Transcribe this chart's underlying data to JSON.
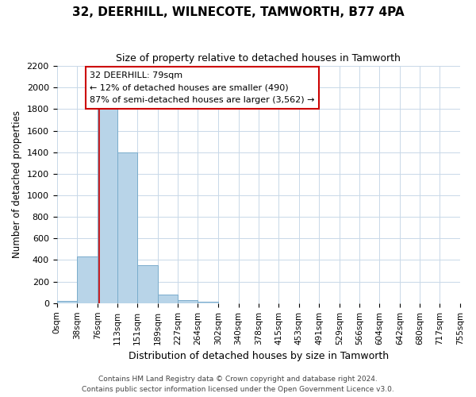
{
  "title": "32, DEERHILL, WILNECOTE, TAMWORTH, B77 4PA",
  "subtitle": "Size of property relative to detached houses in Tamworth",
  "xlabel": "Distribution of detached houses by size in Tamworth",
  "ylabel": "Number of detached properties",
  "bin_edges": [
    0,
    38,
    76,
    113,
    151,
    189,
    227,
    264,
    302,
    340,
    378,
    415,
    453,
    491,
    529,
    566,
    604,
    642,
    680,
    717,
    755
  ],
  "bin_labels": [
    "0sqm",
    "38sqm",
    "76sqm",
    "113sqm",
    "151sqm",
    "189sqm",
    "227sqm",
    "264sqm",
    "302sqm",
    "340sqm",
    "378sqm",
    "415sqm",
    "453sqm",
    "491sqm",
    "529sqm",
    "566sqm",
    "604sqm",
    "642sqm",
    "680sqm",
    "717sqm",
    "755sqm"
  ],
  "bar_heights": [
    20,
    430,
    1820,
    1400,
    350,
    80,
    25,
    10,
    0,
    0,
    0,
    0,
    0,
    0,
    0,
    0,
    0,
    0,
    0,
    0
  ],
  "bar_color": "#b8d4e8",
  "bar_edge_color": "#7aaccc",
  "property_line_x": 79,
  "annotation_line1": "32 DEERHILL: 79sqm",
  "annotation_line2": "← 12% of detached houses are smaller (490)",
  "annotation_line3": "87% of semi-detached houses are larger (3,562) →",
  "property_line_color": "#cc0000",
  "ylim": [
    0,
    2200
  ],
  "yticks": [
    0,
    200,
    400,
    600,
    800,
    1000,
    1200,
    1400,
    1600,
    1800,
    2000,
    2200
  ],
  "footnote1": "Contains HM Land Registry data © Crown copyright and database right 2024.",
  "footnote2": "Contains public sector information licensed under the Open Government Licence v3.0.",
  "background_color": "#ffffff",
  "grid_color": "#c8d8e8"
}
